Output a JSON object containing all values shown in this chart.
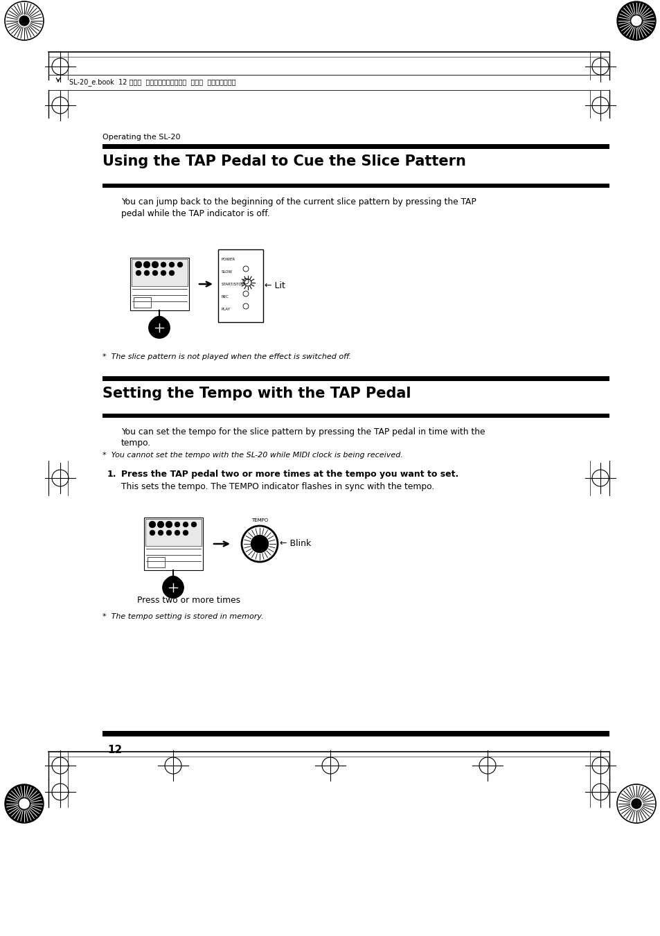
{
  "bg_color": "#ffffff",
  "page_width": 9.54,
  "page_height": 13.51,
  "header_text": "SL-20_e.book  12 ページ  ２００８年３月２８日  金曜日  午前８時２８分",
  "section_label": "Operating the SL-20",
  "title1": "Using the TAP Pedal to Cue the Slice Pattern",
  "title2": "Setting the Tempo with the TAP Pedal",
  "body1_line1": "You can jump back to the beginning of the current slice pattern by pressing the TAP",
  "body1_line2": "pedal while the TAP indicator is off.",
  "note1": "*  The slice pattern is not played when the effect is switched off.",
  "body2_line1": "You can set the tempo for the slice pattern by pressing the TAP pedal in time with the",
  "body2_line2": "tempo.",
  "note2": "*  You cannot set the tempo with the SL-20 while MIDI clock is being received.",
  "step1_label": "1.",
  "step1_bold": "Press the TAP pedal two or more times at the tempo you want to set.",
  "step1_body": "This sets the tempo. The TEMPO indicator flashes in sync with the tempo.",
  "caption1": "Press two or more times",
  "note3": "*  The tempo setting is stored in memory.",
  "page_number": "12",
  "lit_label": "← Lit",
  "blink_label": "← Blink"
}
